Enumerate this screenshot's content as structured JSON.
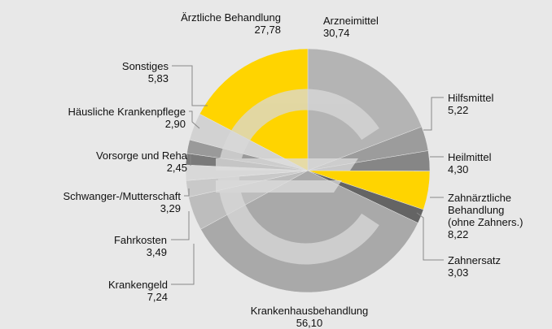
{
  "chart_data": {
    "type": "pie",
    "categories": [
      "Arzneimittel",
      "Hilfsmittel",
      "Heilmittel",
      "Zahnärztliche\nBehandlung\n(ohne Zahners.)",
      "Zahnersatz",
      "Krankenhausbehandlung",
      "Krankengeld",
      "Fahrkosten",
      "Schwanger-/Mutterschaft",
      "Vorsorge und Reha",
      "Häusliche Krankenpflege",
      "Sonstiges",
      "Ärztliche Behandlung"
    ],
    "values": [
      30.74,
      5.22,
      4.3,
      8.22,
      3.03,
      56.1,
      7.24,
      3.49,
      3.29,
      2.45,
      2.9,
      5.83,
      27.78
    ],
    "value_labels": [
      "30,74",
      "5,22",
      "4,30",
      "8,22",
      "3,03",
      "56,10",
      "7,24",
      "3,49",
      "3,29",
      "2,45",
      "2,90",
      "5,83",
      "27,78"
    ],
    "colors": [
      "#b4b4b4",
      "#9c9c9c",
      "#868686",
      "#ffd400",
      "#646464",
      "#a9a9a9",
      "#bdbdbd",
      "#c9c9c9",
      "#d8d8d8",
      "#7a7a7a",
      "#9a9a9a",
      "#d2d2d2",
      "#ffd400"
    ]
  }
}
